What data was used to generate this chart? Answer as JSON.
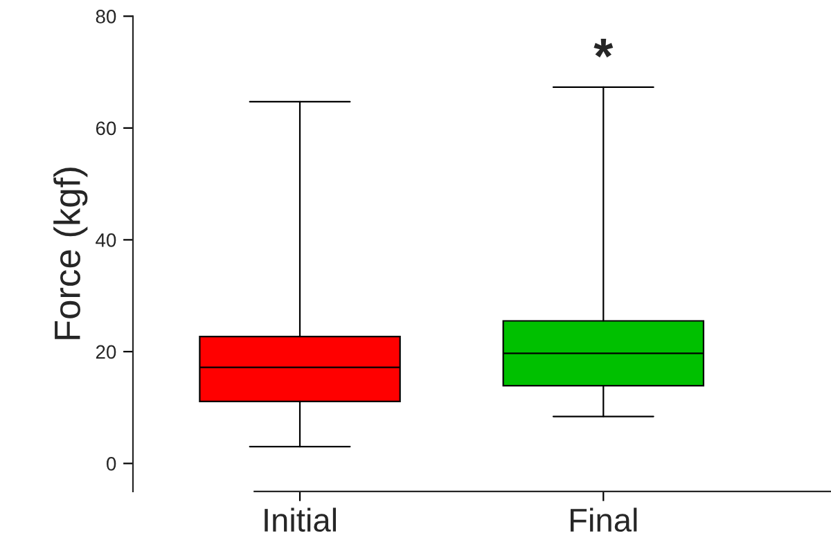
{
  "chart_data": {
    "type": "box",
    "ylabel": "Force (kgf)",
    "categories": [
      "Initial",
      "Final"
    ],
    "colors": [
      "#ff0000",
      "#00c000"
    ],
    "boxes": [
      {
        "low": 3.0,
        "q1": 11.1,
        "median": 17.2,
        "q3": 22.7,
        "high": 64.7
      },
      {
        "low": 8.4,
        "q1": 13.9,
        "median": 19.7,
        "q3": 25.5,
        "high": 67.3
      }
    ],
    "ylim": [
      -5,
      80
    ],
    "yticks": [
      0,
      20,
      40,
      60,
      80
    ],
    "annotations": [
      "*"
    ]
  }
}
